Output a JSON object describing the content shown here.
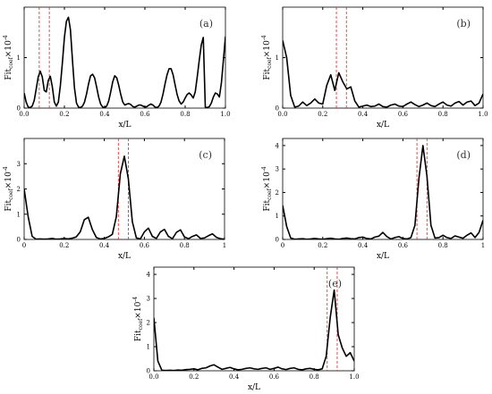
{
  "chart_data": [
    {
      "type": "line",
      "panel_label": "(a)",
      "xlabel": "x/L",
      "ylabel": {
        "base": "Fit",
        "sub": "coef",
        "mid": "×10",
        "sup": "-4"
      },
      "xlim": [
        0,
        1
      ],
      "ylim": [
        0,
        2
      ],
      "xticks": [
        0,
        0.2,
        0.4,
        0.6,
        0.8,
        1.0
      ],
      "xtick_labels": [
        "0.0",
        "0.2",
        "0.4",
        "0.6",
        "0.8",
        "1.0"
      ],
      "yticks": [
        0,
        1
      ],
      "ytick_labels": [
        "0",
        "1"
      ],
      "threshold_lines": [
        0.075,
        0.125
      ],
      "x": [
        0.0,
        0.01,
        0.02,
        0.03,
        0.04,
        0.05,
        0.06,
        0.07,
        0.08,
        0.09,
        0.1,
        0.11,
        0.12,
        0.13,
        0.14,
        0.15,
        0.16,
        0.17,
        0.18,
        0.19,
        0.2,
        0.21,
        0.22,
        0.23,
        0.24,
        0.25,
        0.26,
        0.27,
        0.28,
        0.29,
        0.3,
        0.31,
        0.32,
        0.33,
        0.34,
        0.35,
        0.36,
        0.37,
        0.38,
        0.39,
        0.4,
        0.41,
        0.42,
        0.43,
        0.44,
        0.45,
        0.46,
        0.47,
        0.48,
        0.49,
        0.5,
        0.51,
        0.52,
        0.53,
        0.54,
        0.55,
        0.56,
        0.57,
        0.58,
        0.59,
        0.6,
        0.61,
        0.62,
        0.63,
        0.64,
        0.65,
        0.66,
        0.67,
        0.68,
        0.69,
        0.7,
        0.71,
        0.72,
        0.73,
        0.74,
        0.75,
        0.76,
        0.77,
        0.78,
        0.79,
        0.8,
        0.81,
        0.82,
        0.83,
        0.84,
        0.85,
        0.86,
        0.87,
        0.88,
        0.89,
        0.9,
        0.91,
        0.92,
        0.93,
        0.94,
        0.95,
        0.96,
        0.97,
        0.98,
        0.99,
        1.0
      ],
      "y": [
        0.3,
        0.12,
        0.02,
        0.01,
        0.04,
        0.15,
        0.38,
        0.62,
        0.73,
        0.62,
        0.35,
        0.32,
        0.55,
        0.63,
        0.42,
        0.12,
        0.04,
        0.12,
        0.45,
        0.9,
        1.4,
        1.72,
        1.8,
        1.55,
        0.95,
        0.4,
        0.1,
        0.02,
        0.01,
        0.04,
        0.12,
        0.28,
        0.48,
        0.64,
        0.67,
        0.6,
        0.42,
        0.22,
        0.08,
        0.02,
        0.01,
        0.04,
        0.14,
        0.32,
        0.52,
        0.64,
        0.6,
        0.45,
        0.27,
        0.12,
        0.06,
        0.08,
        0.09,
        0.07,
        0.03,
        0.02,
        0.04,
        0.06,
        0.06,
        0.04,
        0.02,
        0.03,
        0.06,
        0.08,
        0.06,
        0.02,
        0.01,
        0.04,
        0.12,
        0.28,
        0.48,
        0.66,
        0.78,
        0.78,
        0.66,
        0.46,
        0.27,
        0.14,
        0.08,
        0.12,
        0.2,
        0.27,
        0.3,
        0.26,
        0.2,
        0.32,
        0.62,
        0.95,
        1.25,
        1.4,
        0.02,
        0.01,
        0.03,
        0.1,
        0.22,
        0.3,
        0.28,
        0.22,
        0.5,
        0.95,
        1.42
      ]
    },
    {
      "type": "line",
      "panel_label": "(b)",
      "xlabel": "x/L",
      "ylabel": {
        "base": "Fit",
        "sub": "coef",
        "mid": "×10",
        "sup": "-4"
      },
      "xlim": [
        0,
        1
      ],
      "ylim": [
        0,
        2
      ],
      "xticks": [
        0,
        0.2,
        0.4,
        0.6,
        0.8,
        1.0
      ],
      "xtick_labels": [
        "0.0",
        "0.2",
        "0.4",
        "0.6",
        "0.8",
        "1.0"
      ],
      "yticks": [
        0,
        1
      ],
      "ytick_labels": [
        "0",
        "1"
      ],
      "threshold_lines": [
        0.268,
        0.318
      ],
      "x": [
        0.0,
        0.02,
        0.04,
        0.06,
        0.08,
        0.1,
        0.12,
        0.14,
        0.16,
        0.18,
        0.2,
        0.22,
        0.24,
        0.26,
        0.28,
        0.3,
        0.32,
        0.34,
        0.36,
        0.38,
        0.4,
        0.42,
        0.44,
        0.46,
        0.48,
        0.5,
        0.52,
        0.54,
        0.56,
        0.58,
        0.6,
        0.62,
        0.64,
        0.66,
        0.68,
        0.7,
        0.72,
        0.74,
        0.76,
        0.78,
        0.8,
        0.82,
        0.84,
        0.86,
        0.88,
        0.9,
        0.92,
        0.94,
        0.96,
        0.98,
        1.0
      ],
      "y": [
        1.34,
        1.0,
        0.25,
        0.02,
        0.04,
        0.12,
        0.05,
        0.1,
        0.18,
        0.1,
        0.08,
        0.45,
        0.66,
        0.35,
        0.7,
        0.52,
        0.38,
        0.42,
        0.14,
        0.02,
        0.04,
        0.06,
        0.03,
        0.04,
        0.08,
        0.03,
        0.02,
        0.06,
        0.08,
        0.04,
        0.03,
        0.08,
        0.12,
        0.07,
        0.03,
        0.06,
        0.1,
        0.05,
        0.03,
        0.08,
        0.12,
        0.06,
        0.04,
        0.1,
        0.13,
        0.06,
        0.12,
        0.14,
        0.05,
        0.1,
        0.28
      ]
    },
    {
      "type": "line",
      "panel_label": "(c)",
      "xlabel": "x/L",
      "ylabel": {
        "base": "Fit",
        "sub": "coef",
        "mid": "×10",
        "sup": "-4"
      },
      "xlim": [
        0,
        1
      ],
      "ylim": [
        0,
        4
      ],
      "xticks": [
        0,
        0.2,
        0.4,
        0.6,
        0.8,
        1.0
      ],
      "xtick_labels": [
        "0",
        "0.2",
        "0.4",
        "0.6",
        "0.8",
        "1"
      ],
      "yticks": [
        0,
        1,
        2,
        3
      ],
      "ytick_labels": [
        "0",
        "1",
        "2",
        "3"
      ],
      "threshold_lines": [
        0.47,
        0.52
      ],
      "x": [
        0.0,
        0.02,
        0.04,
        0.06,
        0.08,
        0.1,
        0.12,
        0.14,
        0.16,
        0.18,
        0.2,
        0.22,
        0.24,
        0.26,
        0.28,
        0.3,
        0.32,
        0.34,
        0.36,
        0.38,
        0.4,
        0.42,
        0.44,
        0.46,
        0.48,
        0.5,
        0.52,
        0.54,
        0.56,
        0.58,
        0.6,
        0.62,
        0.64,
        0.66,
        0.68,
        0.7,
        0.72,
        0.74,
        0.76,
        0.78,
        0.8,
        0.82,
        0.84,
        0.86,
        0.88,
        0.9,
        0.92,
        0.94,
        0.96,
        0.98,
        1.0
      ],
      "y": [
        2.0,
        0.9,
        0.12,
        0.01,
        0.02,
        0.01,
        0.02,
        0.04,
        0.01,
        0.02,
        0.04,
        0.02,
        0.05,
        0.1,
        0.3,
        0.78,
        0.88,
        0.4,
        0.08,
        0.02,
        0.04,
        0.1,
        0.2,
        0.9,
        2.6,
        3.3,
        2.4,
        0.7,
        0.06,
        0.02,
        0.3,
        0.45,
        0.12,
        0.04,
        0.3,
        0.4,
        0.12,
        0.03,
        0.28,
        0.38,
        0.1,
        0.03,
        0.12,
        0.18,
        0.04,
        0.06,
        0.15,
        0.22,
        0.08,
        0.03,
        0.01
      ]
    },
    {
      "type": "line",
      "panel_label": "(d)",
      "xlabel": "x/L",
      "ylabel": {
        "base": "Fit",
        "sub": "coef",
        "mid": "×10",
        "sup": "-4"
      },
      "xlim": [
        0,
        1
      ],
      "ylim": [
        0,
        4.3
      ],
      "xticks": [
        0,
        0.2,
        0.4,
        0.6,
        0.8,
        1.0
      ],
      "xtick_labels": [
        "0",
        "0.2",
        "0.4",
        "0.6",
        "0.8",
        "1"
      ],
      "yticks": [
        0,
        1,
        2,
        3,
        4
      ],
      "ytick_labels": [
        "0",
        "1",
        "2",
        "3",
        "4"
      ],
      "threshold_lines": [
        0.67,
        0.72
      ],
      "x": [
        0.0,
        0.02,
        0.04,
        0.06,
        0.08,
        0.1,
        0.12,
        0.14,
        0.16,
        0.18,
        0.2,
        0.22,
        0.24,
        0.26,
        0.28,
        0.3,
        0.32,
        0.34,
        0.36,
        0.38,
        0.4,
        0.42,
        0.44,
        0.46,
        0.48,
        0.5,
        0.52,
        0.54,
        0.56,
        0.58,
        0.6,
        0.62,
        0.64,
        0.66,
        0.68,
        0.7,
        0.72,
        0.74,
        0.76,
        0.78,
        0.8,
        0.82,
        0.84,
        0.86,
        0.88,
        0.9,
        0.92,
        0.94,
        0.96,
        0.98,
        1.0
      ],
      "y": [
        1.45,
        0.55,
        0.06,
        0.01,
        0.02,
        0.03,
        0.01,
        0.02,
        0.04,
        0.02,
        0.01,
        0.03,
        0.05,
        0.02,
        0.01,
        0.04,
        0.06,
        0.03,
        0.02,
        0.08,
        0.1,
        0.04,
        0.02,
        0.1,
        0.14,
        0.3,
        0.12,
        0.02,
        0.08,
        0.12,
        0.04,
        0.02,
        0.08,
        0.6,
        2.6,
        4.0,
        2.7,
        0.6,
        0.06,
        0.08,
        0.18,
        0.08,
        0.04,
        0.15,
        0.1,
        0.05,
        0.18,
        0.28,
        0.08,
        0.3,
        0.82
      ]
    },
    {
      "type": "line",
      "panel_label": "(e)",
      "xlabel": "x/L",
      "ylabel": {
        "base": "Fit",
        "sub": "coef",
        "mid": "×10",
        "sup": "-4"
      },
      "xlim": [
        0,
        1
      ],
      "ylim": [
        0,
        4.3
      ],
      "xticks": [
        0,
        0.2,
        0.4,
        0.6,
        0.8,
        1.0
      ],
      "xtick_labels": [
        "0.0",
        "0.2",
        "0.4",
        "0.6",
        "0.8",
        "1.0"
      ],
      "yticks": [
        0,
        1,
        2,
        3,
        4
      ],
      "ytick_labels": [
        "0",
        "1",
        "2",
        "3",
        "4"
      ],
      "threshold_lines": [
        0.865,
        0.915
      ],
      "x": [
        0.0,
        0.02,
        0.04,
        0.06,
        0.08,
        0.1,
        0.12,
        0.14,
        0.16,
        0.18,
        0.2,
        0.22,
        0.24,
        0.26,
        0.28,
        0.3,
        0.32,
        0.34,
        0.36,
        0.38,
        0.4,
        0.42,
        0.44,
        0.46,
        0.48,
        0.5,
        0.52,
        0.54,
        0.56,
        0.58,
        0.6,
        0.62,
        0.64,
        0.66,
        0.68,
        0.7,
        0.72,
        0.74,
        0.76,
        0.78,
        0.8,
        0.82,
        0.84,
        0.86,
        0.88,
        0.9,
        0.92,
        0.94,
        0.96,
        0.98,
        1.0
      ],
      "y": [
        2.2,
        0.4,
        0.02,
        0.01,
        0.02,
        0.01,
        0.03,
        0.02,
        0.05,
        0.06,
        0.08,
        0.04,
        0.1,
        0.12,
        0.2,
        0.25,
        0.15,
        0.06,
        0.1,
        0.14,
        0.08,
        0.04,
        0.06,
        0.1,
        0.12,
        0.08,
        0.06,
        0.1,
        0.12,
        0.06,
        0.1,
        0.15,
        0.08,
        0.05,
        0.1,
        0.12,
        0.06,
        0.04,
        0.08,
        0.1,
        0.06,
        0.04,
        0.08,
        0.6,
        2.2,
        3.35,
        1.5,
        0.95,
        0.6,
        0.75,
        0.4
      ]
    }
  ]
}
